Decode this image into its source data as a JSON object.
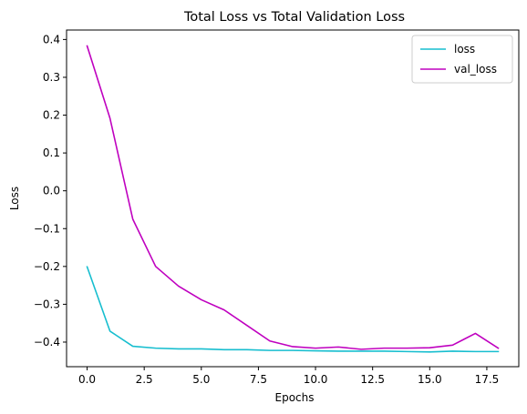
{
  "chart_data": {
    "type": "line",
    "title": "Total Loss vs Total Validation Loss",
    "xlabel": "Epochs",
    "ylabel": "Loss",
    "xlim": [
      -0.9,
      18.9
    ],
    "ylim": [
      -0.465,
      0.425
    ],
    "xticks": [
      0.0,
      2.5,
      5.0,
      7.5,
      10.0,
      12.5,
      15.0,
      17.5
    ],
    "xtick_labels": [
      "0.0",
      "2.5",
      "5.0",
      "7.5",
      "10.0",
      "12.5",
      "15.0",
      "17.5"
    ],
    "yticks": [
      -0.4,
      -0.3,
      -0.2,
      -0.1,
      0.0,
      0.1,
      0.2,
      0.3,
      0.4
    ],
    "ytick_labels": [
      "−0.4",
      "−0.3",
      "−0.2",
      "−0.1",
      "0.0",
      "0.1",
      "0.2",
      "0.3",
      "0.4"
    ],
    "grid": false,
    "legend_position": "top-right",
    "x": [
      0,
      1,
      2,
      3,
      4,
      5,
      6,
      7,
      8,
      9,
      10,
      11,
      12,
      13,
      14,
      15,
      16,
      17,
      18
    ],
    "series": [
      {
        "name": "loss",
        "color": "#17becf",
        "values": [
          -0.201,
          -0.371,
          -0.411,
          -0.416,
          -0.418,
          -0.418,
          -0.42,
          -0.42,
          -0.422,
          -0.422,
          -0.423,
          -0.424,
          -0.424,
          -0.424,
          -0.425,
          -0.426,
          -0.424,
          -0.425,
          -0.425
        ]
      },
      {
        "name": "val_loss",
        "color": "#bf00bf",
        "values": [
          0.383,
          0.192,
          -0.075,
          -0.2,
          -0.252,
          -0.288,
          -0.315,
          -0.356,
          -0.397,
          -0.412,
          -0.416,
          -0.413,
          -0.419,
          -0.416,
          -0.416,
          -0.415,
          -0.408,
          -0.377,
          -0.416
        ]
      }
    ]
  }
}
